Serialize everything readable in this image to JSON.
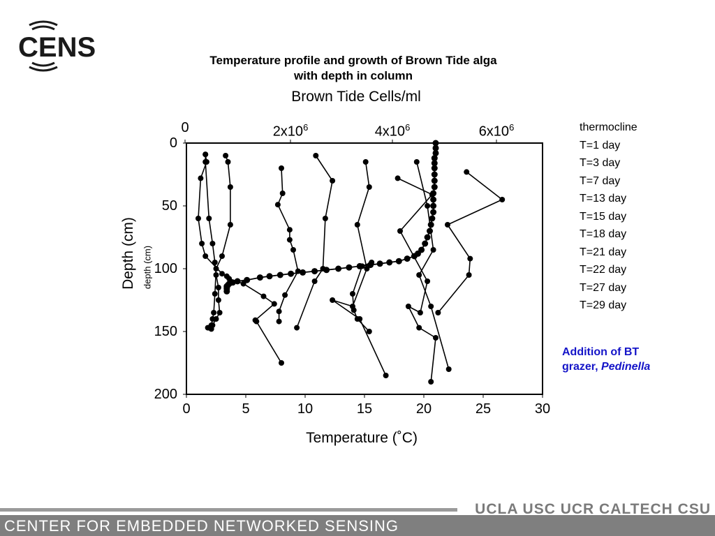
{
  "logo": {
    "text": "CENS"
  },
  "footer": {
    "org": "CENTER FOR EMBEDDED NETWORKED SENSING",
    "partners": "UCLA  USC  UCR  CALTECH  CSU"
  },
  "annotation": {
    "line1": "Addition of BT",
    "line2_prefix": "grazer, ",
    "line2_italic": "Pedinella"
  },
  "colors": {
    "annotation": "#1414c8",
    "footer_bar": "#7f7f7f",
    "footer_line": "#9a9a9a"
  },
  "chart_data": {
    "type": "scatter",
    "title": "Temperature profile and growth of Brown Tide alga",
    "subtitle": "with depth in column",
    "xlabel": "Temperature (˚C)",
    "x2label": "Brown Tide Cells/ml",
    "ylabel": "Depth (cm)",
    "ylabel_secondary": "depth (cm)",
    "xlim": [
      0,
      30
    ],
    "ylim": [
      200,
      0
    ],
    "x_ticks": [
      "0",
      "5",
      "10",
      "15",
      "20",
      "25",
      "30"
    ],
    "y_ticks": [
      "0",
      "50",
      "100",
      "150",
      "200"
    ],
    "x2_ticks": [
      {
        "label": "0",
        "exp": ""
      },
      {
        "label": "2x10",
        "exp": "6"
      },
      {
        "label": "4x10",
        "exp": "6"
      },
      {
        "label": "6x10",
        "exp": "6"
      }
    ],
    "legend": [
      "thermocline",
      "T=1 day",
      "T=3 day",
      "T=7 day",
      "T=13 day",
      "T=15 day",
      "T=18 day",
      "T=21 day",
      "T=22 day",
      "T=27 day",
      "T=29 day"
    ],
    "series": [
      {
        "name": "thermocline",
        "temperature": [
          21.0,
          21.0,
          21.0,
          20.9,
          20.9,
          20.9,
          20.9,
          20.9,
          20.9,
          20.8,
          20.8,
          20.8,
          20.8,
          20.7,
          20.6,
          20.5,
          20.3,
          20.1,
          19.8,
          19.5,
          19.2,
          18.6,
          17.9,
          17.1,
          16.3,
          15.5,
          14.6,
          13.7,
          12.8,
          11.8,
          10.8,
          9.8,
          8.8,
          7.9,
          7.0,
          6.2,
          5.1,
          4.3,
          3.9,
          3.6,
          3.5,
          3.4,
          3.4,
          3.4,
          3.4
        ],
        "depth": [
          0,
          4,
          8,
          12,
          16,
          20,
          25,
          30,
          35,
          40,
          45,
          50,
          55,
          60,
          65,
          70,
          75,
          80,
          85,
          88,
          90,
          92,
          94,
          95,
          96,
          97,
          98,
          99,
          100,
          101,
          102,
          103,
          104,
          105,
          106,
          107,
          109,
          110,
          111,
          112,
          113,
          114,
          115,
          116,
          118
        ]
      },
      {
        "name": "T=1 day",
        "temperature": [
          1.6,
          1.7,
          1.2,
          1.0,
          1.3,
          1.6,
          3.0,
          3.4,
          3.6,
          4.8,
          6.5,
          7.4,
          5.8,
          5.9,
          8.0
        ],
        "depth": [
          9,
          15,
          28,
          60,
          80,
          90,
          104,
          106,
          108,
          112,
          122,
          128,
          141,
          142,
          175
        ]
      },
      {
        "name": "T=3 day",
        "temperature": [
          1.6,
          1.6,
          1.9,
          2.2,
          2.4,
          2.5,
          2.7,
          2.7,
          2.8,
          2.5,
          2.2,
          2.0,
          1.8
        ],
        "depth": [
          9,
          15,
          60,
          80,
          95,
          105,
          115,
          125,
          135,
          140,
          145,
          147,
          147
        ]
      },
      {
        "name": "T=7 day",
        "temperature": [
          3.3,
          3.5,
          3.7,
          3.7,
          3.0,
          2.5,
          2.4,
          2.3,
          2.2,
          2.1,
          1.9,
          2.1
        ],
        "depth": [
          10,
          15,
          35,
          65,
          90,
          100,
          120,
          135,
          140,
          145,
          147,
          148
        ]
      },
      {
        "name": "T=13 day",
        "temperature": [
          8.0,
          8.1,
          7.7,
          8.7,
          8.7,
          9.0,
          9.4,
          8.3,
          7.8,
          7.8
        ],
        "depth": [
          20,
          40,
          49,
          69,
          77,
          85,
          102,
          121,
          134,
          142
        ]
      },
      {
        "name": "T=15 day",
        "temperature": [
          10.9,
          12.3,
          11.7,
          11.5,
          10.8,
          9.3
        ],
        "depth": [
          10,
          30,
          60,
          100,
          110,
          147
        ]
      },
      {
        "name": "T=18 day",
        "temperature": [
          15.1,
          15.4,
          14.4,
          15.2,
          14.0,
          12.3,
          14.6,
          16.8
        ],
        "depth": [
          15,
          35,
          65,
          100,
          130,
          125,
          140,
          185
        ]
      },
      {
        "name": "T=21 day",
        "temperature": [
          17.8,
          20.7,
          18.0,
          20.3,
          19.7,
          18.7,
          19.6,
          21.0,
          20.6
        ],
        "depth": [
          28,
          41,
          70,
          110,
          135,
          130,
          147,
          155,
          190
        ]
      },
      {
        "name": "T=22 day",
        "temperature": [
          19.4,
          20.3,
          20.8,
          19.6,
          20.6,
          22.1
        ],
        "depth": [
          15,
          50,
          85,
          105,
          130,
          180
        ]
      },
      {
        "name": "T=27 day",
        "temperature": [
          23.6,
          26.6,
          22.0,
          23.9,
          23.8,
          21.2
        ],
        "depth": [
          23,
          45,
          65,
          92,
          105,
          135
        ]
      },
      {
        "name": "T=29 day",
        "temperature": [
          15.6,
          14.8,
          14.0,
          14.1,
          14.4,
          15.4
        ],
        "depth": [
          95,
          98,
          120,
          133,
          140,
          150
        ]
      }
    ]
  }
}
